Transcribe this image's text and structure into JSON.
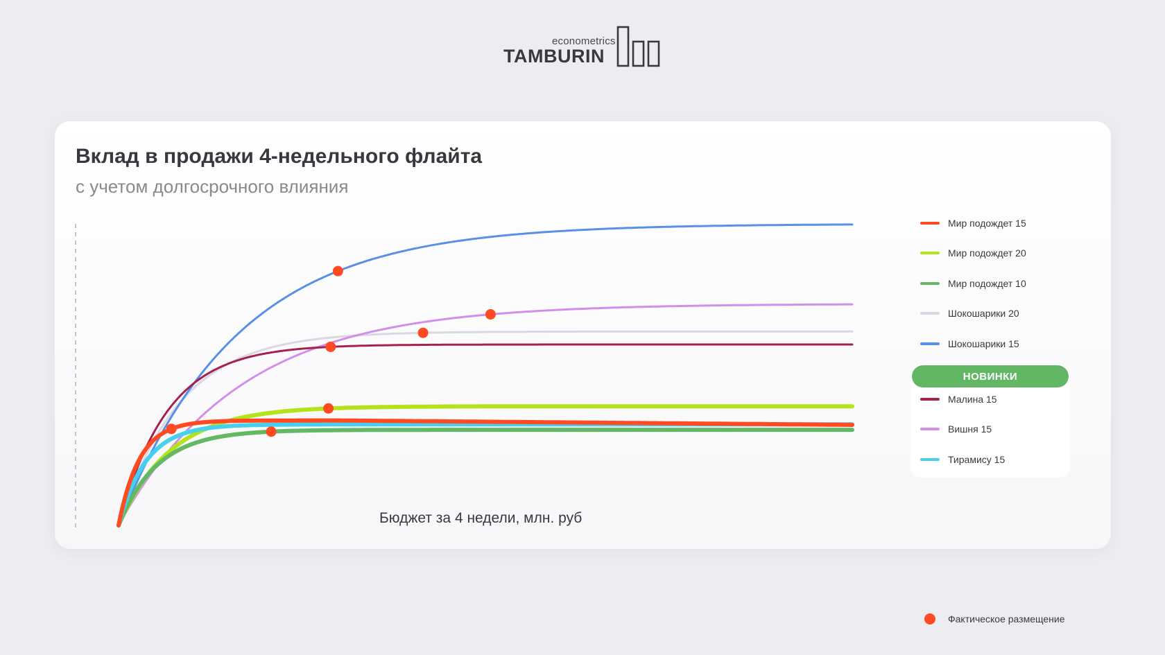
{
  "logo": {
    "small": "econometrics",
    "big": "TAMBURIN"
  },
  "chart_data": {
    "type": "line",
    "title": "Вклад в продажи 4-недельного флайта",
    "subtitle": "с учетом долгосрочного влияния",
    "xlabel": "Бюджет за 4 недели, млн. руб",
    "ylabel": "",
    "xlim": [
      0,
      100
    ],
    "ylim": [
      0,
      100
    ],
    "grid": false,
    "legend_position": "right",
    "series": [
      {
        "name": "Мир подождет 15",
        "color": "#ff4a22",
        "width": 6,
        "asymptote": 34.8,
        "k": 0.35,
        "peak_x": 30,
        "decline": 0.06,
        "placement": 7.2
      },
      {
        "name": "Мир подождет 20",
        "color": "#b5e31a",
        "width": 6,
        "asymptote": 39.5,
        "k": 0.14,
        "peak_x": 60,
        "decline": 0,
        "placement": 28.6
      },
      {
        "name": "Мир подождет 10",
        "color": "#63b866",
        "width": 6,
        "asymptote": 31.7,
        "k": 0.19,
        "peak_x": 100,
        "decline": 0,
        "placement": 20.8
      },
      {
        "name": "Шокошарики 20",
        "color": "#d9d7e4",
        "width": 3,
        "asymptote": 64.3,
        "k": 0.12,
        "peak_x": 100,
        "decline": 0,
        "placement": 41.5
      },
      {
        "name": "Шокошарики 15",
        "color": "#5a8fe6",
        "width": 3,
        "asymptote": 100,
        "k": 0.062,
        "peak_x": 100,
        "decline": 0,
        "placement": 29.9
      },
      {
        "name": "Малина 15",
        "color": "#a5214f",
        "width": 3,
        "asymptote": 60,
        "k": 0.15,
        "peak_x": 100,
        "decline": 0,
        "placement": 28.9
      },
      {
        "name": "Вишня 15",
        "color": "#d38ee9",
        "width": 3,
        "asymptote": 73.5,
        "k": 0.06,
        "peak_x": 100,
        "decline": 0,
        "placement": 50.7
      },
      {
        "name": "Тирамису 15",
        "color": "#46d0ee",
        "width": 6,
        "asymptote": 33.5,
        "k": 0.27,
        "peak_x": 100,
        "decline": 0,
        "placement": null
      }
    ],
    "new_products_label": "НОВИНКИ",
    "new_products": [
      "Малина 15",
      "Вишня 15",
      "Тирамису 15"
    ],
    "placement_label": "Фактическое размещение",
    "placement_color": "#ff4a22"
  }
}
